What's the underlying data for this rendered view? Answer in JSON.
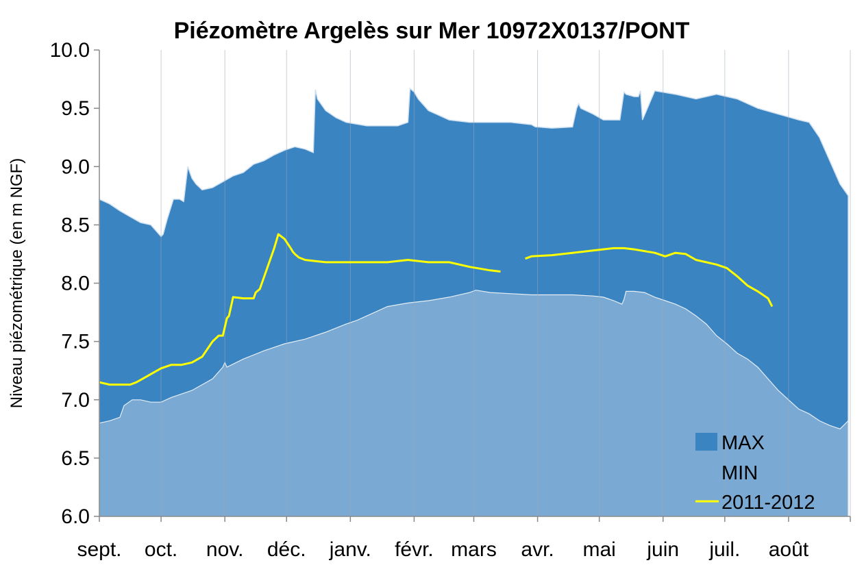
{
  "chart_data": {
    "type": "area",
    "title": "Piézomètre Argelès sur Mer 10972X0137/PONT",
    "ylabel": "Niveau piézométrique (en m NGF)",
    "xlabel": "",
    "ylim": [
      6.0,
      10.0
    ],
    "yticks": [
      "6.0",
      "6.5",
      "7.0",
      "7.5",
      "8.0",
      "8.5",
      "9.0",
      "9.5",
      "10.0"
    ],
    "months": [
      "sept.",
      "oct.",
      "nov.",
      "déc.",
      "janv.",
      "févr.",
      "mars",
      "avr.",
      "mai",
      "juin",
      "juil.",
      "août"
    ],
    "legend_position": "bottom-right",
    "grid": "vertical",
    "colors": {
      "max": "#3a84c2",
      "min": "#7aaad3",
      "current": "#ffff00",
      "grid": "#9aa7b5"
    },
    "series": [
      {
        "name": "MAX",
        "type": "area",
        "x": [
          0,
          5,
          10,
          15,
          20,
          25,
          29,
          30,
          31,
          33,
          36,
          39,
          41,
          43,
          45,
          47,
          50,
          55,
          61,
          65,
          70,
          75,
          80,
          85,
          90,
          95,
          100,
          104,
          105,
          106,
          110,
          115,
          120,
          130,
          140,
          145,
          150,
          151,
          153,
          155,
          160,
          170,
          180,
          190,
          200,
          210,
          212,
          213,
          220,
          230,
          232,
          233,
          234,
          240,
          245,
          250,
          253,
          255,
          256,
          260,
          262,
          263,
          264,
          270,
          280,
          290,
          300,
          310,
          320,
          330,
          340,
          345,
          350,
          355,
          360,
          364
        ],
        "values": [
          8.72,
          8.68,
          8.62,
          8.57,
          8.52,
          8.5,
          8.42,
          8.4,
          8.42,
          8.55,
          8.72,
          8.72,
          8.7,
          9.0,
          8.9,
          8.85,
          8.8,
          8.82,
          8.88,
          8.92,
          8.95,
          9.02,
          9.05,
          9.1,
          9.14,
          9.17,
          9.15,
          9.12,
          9.66,
          9.58,
          9.48,
          9.42,
          9.38,
          9.35,
          9.35,
          9.35,
          9.38,
          9.67,
          9.64,
          9.58,
          9.48,
          9.4,
          9.38,
          9.38,
          9.38,
          9.36,
          9.34,
          9.34,
          9.33,
          9.34,
          9.5,
          9.54,
          9.5,
          9.45,
          9.4,
          9.4,
          9.4,
          9.64,
          9.62,
          9.6,
          9.6,
          9.65,
          9.4,
          9.65,
          9.62,
          9.58,
          9.62,
          9.58,
          9.5,
          9.45,
          9.4,
          9.38,
          9.25,
          9.05,
          8.85,
          8.75
        ]
      },
      {
        "name": "MIN",
        "type": "area",
        "x": [
          0,
          5,
          10,
          12,
          16,
          20,
          25,
          30,
          35,
          45,
          55,
          60,
          61,
          62,
          70,
          80,
          90,
          100,
          110,
          120,
          125,
          130,
          135,
          140,
          150,
          160,
          170,
          180,
          183,
          190,
          200,
          210,
          220,
          230,
          240,
          245,
          250,
          254,
          255,
          256,
          260,
          265,
          270,
          275,
          280,
          285,
          290,
          295,
          300,
          305,
          310,
          315,
          320,
          325,
          330,
          335,
          340,
          345,
          350,
          355,
          360,
          364
        ],
        "values": [
          6.8,
          6.82,
          6.85,
          6.95,
          7.0,
          7.0,
          6.98,
          6.98,
          7.02,
          7.08,
          7.18,
          7.28,
          7.32,
          7.28,
          7.35,
          7.42,
          7.48,
          7.52,
          7.58,
          7.65,
          7.68,
          7.72,
          7.76,
          7.8,
          7.83,
          7.85,
          7.88,
          7.92,
          7.94,
          7.92,
          7.91,
          7.9,
          7.9,
          7.9,
          7.89,
          7.88,
          7.85,
          7.82,
          7.86,
          7.93,
          7.93,
          7.92,
          7.88,
          7.85,
          7.82,
          7.78,
          7.72,
          7.65,
          7.55,
          7.48,
          7.4,
          7.35,
          7.28,
          7.18,
          7.08,
          7.0,
          6.92,
          6.88,
          6.82,
          6.78,
          6.75,
          6.82
        ]
      },
      {
        "name": "2011-2012",
        "type": "line",
        "segments": [
          {
            "x": [
              0,
              5,
              10,
              15,
              18,
              20,
              25,
              30,
              35,
              40,
              45,
              50,
              55,
              58,
              60,
              62,
              63,
              65,
              70,
              75,
              76,
              78,
              80,
              85,
              87,
              90,
              93,
              94,
              95,
              97,
              100,
              105,
              110,
              120,
              130,
              140,
              150,
              160,
              170,
              180,
              190,
              195
            ],
            "values": [
              7.15,
              7.13,
              7.13,
              7.13,
              7.15,
              7.17,
              7.22,
              7.27,
              7.3,
              7.3,
              7.32,
              7.37,
              7.5,
              7.55,
              7.55,
              7.7,
              7.72,
              7.88,
              7.87,
              7.87,
              7.92,
              7.95,
              8.05,
              8.3,
              8.42,
              8.38,
              8.3,
              8.27,
              8.25,
              8.22,
              8.2,
              8.19,
              8.18,
              8.18,
              8.18,
              8.18,
              8.2,
              8.18,
              8.18,
              8.14,
              8.11,
              8.1
            ]
          },
          {
            "x": [
              207,
              210,
              220,
              230,
              240,
              250,
              255,
              260,
              270,
              275,
              280,
              285,
              290,
              295,
              300,
              305,
              310,
              315,
              320,
              325,
              327
            ],
            "values": [
              8.21,
              8.23,
              8.24,
              8.26,
              8.28,
              8.3,
              8.3,
              8.29,
              8.26,
              8.23,
              8.26,
              8.25,
              8.2,
              8.18,
              8.16,
              8.13,
              8.06,
              7.98,
              7.93,
              7.87,
              7.8
            ]
          }
        ]
      }
    ]
  }
}
